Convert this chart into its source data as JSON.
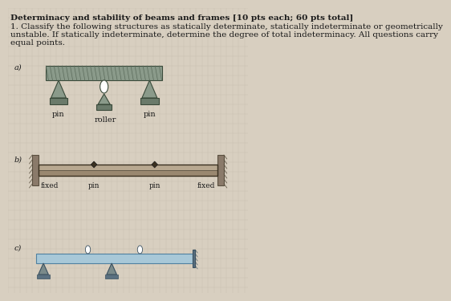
{
  "title_line1": "Determinacy and stability of beams and frames [10 pts each; 60 pts total]",
  "title_line2": "1. Classify the following structures as statically determinate, statically indeterminate or geometrically",
  "title_line3": "unstable. If statically indeterminate, determine the degree of total indeterminacy. All questions carry",
  "title_line4": "equal points.",
  "bg_color": "#d8cfc0",
  "beam_color_a": "#7a8a7a",
  "beam_color_b": "#a09080",
  "beam_color_c": "#a8c8d8",
  "support_color": "#5a6a5a",
  "label_a": "a)",
  "label_b": "b)",
  "label_c": "c)",
  "pin_label": "pin",
  "roller_label": "roller",
  "fixed_label": "fixed",
  "text_color": "#1a1a1a",
  "grid_color": "#c8bfb0"
}
